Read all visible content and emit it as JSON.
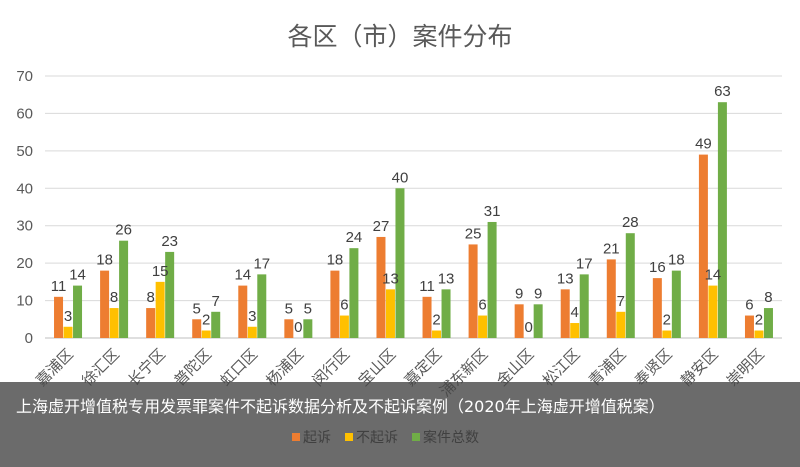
{
  "chart_data": {
    "type": "bar",
    "title": "各区（市）案件分布",
    "categories": [
      "嘉浦区",
      "徐汇区",
      "长宁区",
      "普陀区",
      "虹口区",
      "杨浦区",
      "闵行区",
      "宝山区",
      "嘉定区",
      "浦东新区",
      "金山区",
      "松江区",
      "青浦区",
      "奉贤区",
      "静安区",
      "崇明区"
    ],
    "series": [
      {
        "name": "起诉",
        "color": "#ED7D31",
        "values": [
          11,
          18,
          8,
          5,
          14,
          5,
          18,
          27,
          11,
          25,
          9,
          13,
          21,
          16,
          49,
          6
        ]
      },
      {
        "name": "不起诉",
        "color": "#FFC000",
        "values": [
          3,
          8,
          15,
          2,
          3,
          0,
          6,
          13,
          2,
          6,
          0,
          4,
          7,
          2,
          14,
          2
        ]
      },
      {
        "name": "案件总数",
        "color": "#70AD47",
        "values": [
          14,
          26,
          23,
          7,
          17,
          5,
          24,
          40,
          13,
          31,
          9,
          17,
          28,
          18,
          63,
          8
        ]
      }
    ],
    "ylim": [
      0,
      70
    ],
    "yticks": [
      0,
      10,
      20,
      30,
      40,
      50,
      60,
      70
    ],
    "grid": true,
    "legend_position": "bottom"
  },
  "caption": {
    "text": "上海虚开增值税专用发票罪案件不起诉数据分析及不起诉案例（2020年上海虚开增值税案）"
  }
}
